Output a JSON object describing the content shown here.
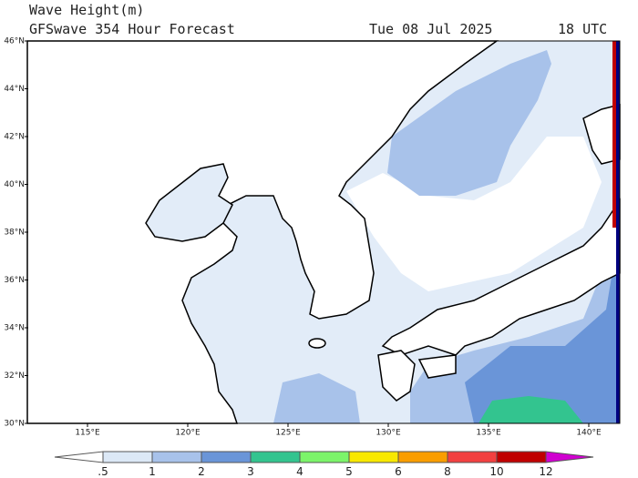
{
  "header": {
    "title": "Wave Height(m)",
    "subtitle": "GFSwave 354 Hour Forecast",
    "date": "Tue 08 Jul 2025",
    "time": "18 UTC"
  },
  "map": {
    "lat_labels": [
      "30°N",
      "32°N",
      "34°N",
      "36°N",
      "38°N",
      "40°N",
      "42°N",
      "44°N",
      "46°N"
    ],
    "lon_labels": [
      "115°E",
      "120°E",
      "125°E",
      "130°E",
      "135°E",
      "140°E"
    ]
  },
  "colorbar": {
    "labels": [
      ".5",
      "1",
      "2",
      "3",
      "4",
      "5",
      "6",
      "8",
      "10",
      "12"
    ],
    "colors": [
      "#ffffff",
      "#dce8f6",
      "#a8c2ea",
      "#6a95d8",
      "#33c48f",
      "#7cf46a",
      "#f8e800",
      "#f99d00",
      "#f24040",
      "#c00000",
      "#d000d0"
    ]
  }
}
